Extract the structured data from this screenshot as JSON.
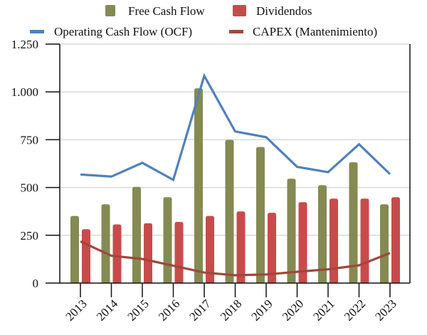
{
  "chart_data": {
    "type": "bar",
    "title": "",
    "xlabel": "",
    "ylabel": "",
    "categories": [
      "2013",
      "2014",
      "2015",
      "2016",
      "2017",
      "2018",
      "2019",
      "2020",
      "2021",
      "2022",
      "2023"
    ],
    "ylim": [
      0,
      1250
    ],
    "yticks": [
      0,
      250,
      500,
      750,
      1000,
      1250
    ],
    "ytick_labels": [
      "0",
      "250",
      "500",
      "750",
      "1.000",
      "1.250"
    ],
    "grid": true,
    "legend_position": "top",
    "series": [
      {
        "name": "Free Cash Flow",
        "kind": "bar",
        "color": "#848A52",
        "values": [
          351,
          412,
          503,
          449,
          1019,
          749,
          712,
          546,
          512,
          632,
          412
        ]
      },
      {
        "name": "Dividendos",
        "kind": "bar",
        "color": "#C84B4B",
        "values": [
          282,
          307,
          313,
          320,
          351,
          375,
          368,
          423,
          442,
          442,
          449
        ]
      },
      {
        "name": "Operating Cash Flow (OCF)",
        "kind": "line",
        "color": "#4F81BD",
        "values": [
          568,
          557,
          629,
          540,
          1084,
          793,
          763,
          608,
          580,
          726,
          570
        ]
      },
      {
        "name": "CAPEX (Mantenimiento)",
        "kind": "line",
        "color": "#A0473C",
        "values": [
          218,
          143,
          126,
          91,
          55,
          41,
          45,
          59,
          72,
          93,
          157
        ]
      }
    ]
  }
}
